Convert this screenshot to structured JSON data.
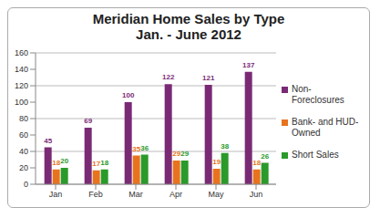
{
  "chart_data": {
    "type": "bar",
    "title": "Meridian Home Sales by Type",
    "subtitle": "Jan. - June 2012",
    "categories": [
      "Jan",
      "Feb",
      "Mar",
      "Apr",
      "May",
      "Jun"
    ],
    "series": [
      {
        "name": "Non-Foreclosures",
        "color": "#7a2a75",
        "values": [
          45,
          69,
          100,
          122,
          121,
          137
        ]
      },
      {
        "name": "Bank- and HUD-Owned",
        "color": "#e8731e",
        "values": [
          18,
          17,
          35,
          29,
          19,
          18
        ]
      },
      {
        "name": "Short Sales",
        "color": "#2a9a2a",
        "values": [
          20,
          18,
          36,
          29,
          38,
          26
        ]
      }
    ],
    "ylim": [
      0,
      160
    ],
    "yticks": [
      0,
      20,
      40,
      60,
      80,
      100,
      120,
      140,
      160
    ],
    "grid": true,
    "legend": "right",
    "data_labels": true
  }
}
